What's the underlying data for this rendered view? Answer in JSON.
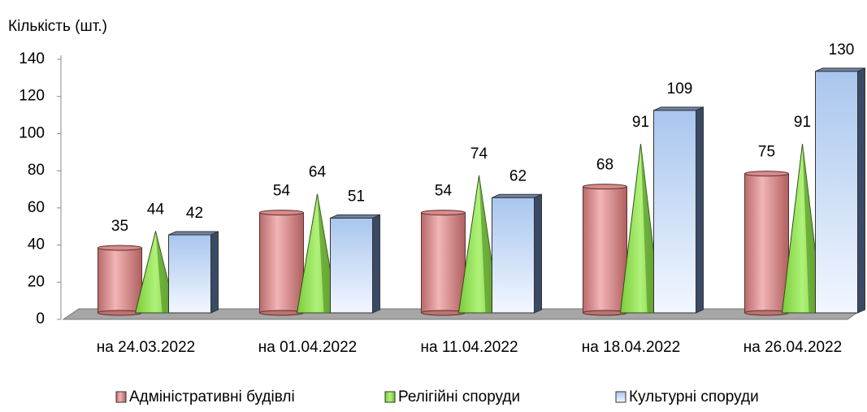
{
  "chart_data": {
    "type": "bar3d",
    "y_label": "Кількість (шт.)",
    "categories": [
      "на 24.03.2022",
      "на 01.04.2022",
      "на 11.04.2022",
      "на 18.04.2022",
      "на 26.04.2022"
    ],
    "series": [
      {
        "name": "Адміністративні будівлі",
        "color": "#e89a9a",
        "shape": "cylinder",
        "values": [
          35,
          54,
          54,
          68,
          75
        ]
      },
      {
        "name": "Релігійні споруди",
        "color": "#99e65a",
        "shape": "cone",
        "values": [
          44,
          64,
          74,
          91,
          91
        ]
      },
      {
        "name": "Культурні споруди",
        "color": "#c5d9f5",
        "shape": "box",
        "values": [
          42,
          51,
          62,
          109,
          130
        ]
      }
    ],
    "ylim": [
      0,
      140
    ],
    "yticks": [
      0,
      20,
      40,
      60,
      80,
      100,
      120,
      140
    ]
  }
}
